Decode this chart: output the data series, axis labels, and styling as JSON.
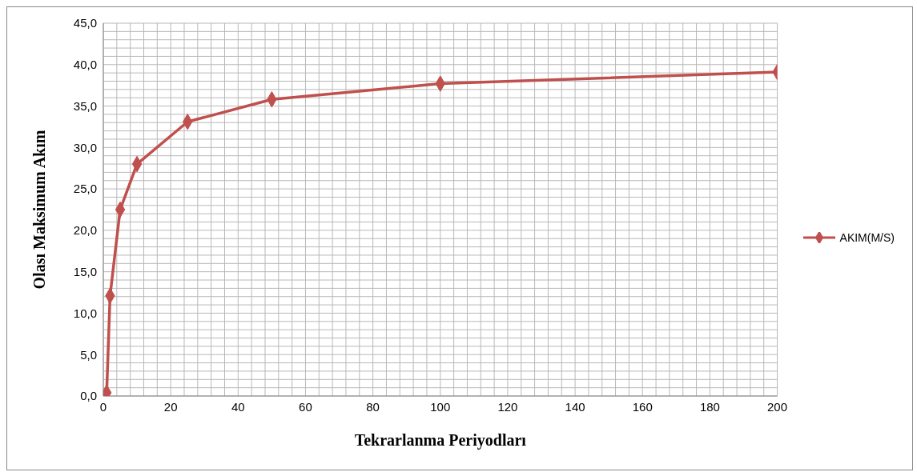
{
  "chart_data": {
    "type": "line",
    "xlabel": "Tekrarlanma Periyodları",
    "ylabel": "Olası Maksimum Akım",
    "x": [
      1,
      2,
      5,
      10,
      25,
      50,
      100,
      200
    ],
    "series": [
      {
        "name": "AKIM(M/S)",
        "color": "#c0504d",
        "values": [
          0.4,
          12.1,
          22.5,
          28.0,
          33.1,
          35.8,
          37.7,
          39.1
        ]
      }
    ],
    "xlim": [
      0,
      200
    ],
    "xticks": [
      0,
      {
        "value": 4,
        "label": null
      },
      {
        "value": 8,
        "label": null
      },
      {
        "value": 12,
        "label": null
      },
      {
        "value": 16,
        "label": null
      },
      20,
      {
        "value": 24,
        "label": null
      },
      {
        "value": 28,
        "label": null
      },
      {
        "value": 32,
        "label": null
      },
      {
        "value": 36,
        "label": null
      },
      40,
      {
        "value": 44,
        "label": null
      },
      {
        "value": 48,
        "label": null
      },
      {
        "value": 52,
        "label": null
      },
      {
        "value": 56,
        "label": null
      },
      60,
      {
        "value": 64,
        "label": null
      },
      {
        "value": 68,
        "label": null
      },
      {
        "value": 72,
        "label": null
      },
      {
        "value": 76,
        "label": null
      },
      80,
      {
        "value": 84,
        "label": null
      },
      {
        "value": 88,
        "label": null
      },
      {
        "value": 92,
        "label": null
      },
      {
        "value": 96,
        "label": null
      },
      100,
      {
        "value": 104,
        "label": null
      },
      {
        "value": 108,
        "label": null
      },
      {
        "value": 112,
        "label": null
      },
      {
        "value": 116,
        "label": null
      },
      120,
      {
        "value": 124,
        "label": null
      },
      {
        "value": 128,
        "label": null
      },
      {
        "value": 132,
        "label": null
      },
      {
        "value": 136,
        "label": null
      },
      140,
      {
        "value": 144,
        "label": null
      },
      {
        "value": 148,
        "label": null
      },
      {
        "value": 152,
        "label": null
      },
      {
        "value": 156,
        "label": null
      },
      160,
      {
        "value": 164,
        "label": null
      },
      {
        "value": 168,
        "label": null
      },
      {
        "value": 172,
        "label": null
      },
      {
        "value": 176,
        "label": null
      },
      180,
      {
        "value": 184,
        "label": null
      },
      {
        "value": 188,
        "label": null
      },
      {
        "value": 192,
        "label": null
      },
      {
        "value": 196,
        "label": null
      },
      200
    ],
    "ylim": [
      0,
      45
    ],
    "yticks": [
      {
        "value": 0,
        "label": "0,0"
      },
      {
        "value": 1,
        "label": null
      },
      {
        "value": 2,
        "label": null
      },
      {
        "value": 3,
        "label": null
      },
      {
        "value": 4,
        "label": null
      },
      {
        "value": 5,
        "label": "5,0"
      },
      {
        "value": 6,
        "label": null
      },
      {
        "value": 7,
        "label": null
      },
      {
        "value": 8,
        "label": null
      },
      {
        "value": 9,
        "label": null
      },
      {
        "value": 10,
        "label": "10,0"
      },
      {
        "value": 11,
        "label": null
      },
      {
        "value": 12,
        "label": null
      },
      {
        "value": 13,
        "label": null
      },
      {
        "value": 14,
        "label": null
      },
      {
        "value": 15,
        "label": "15,0"
      },
      {
        "value": 16,
        "label": null
      },
      {
        "value": 17,
        "label": null
      },
      {
        "value": 18,
        "label": null
      },
      {
        "value": 19,
        "label": null
      },
      {
        "value": 20,
        "label": "20,0"
      },
      {
        "value": 21,
        "label": null
      },
      {
        "value": 22,
        "label": null
      },
      {
        "value": 23,
        "label": null
      },
      {
        "value": 24,
        "label": null
      },
      {
        "value": 25,
        "label": "25,0"
      },
      {
        "value": 26,
        "label": null
      },
      {
        "value": 27,
        "label": null
      },
      {
        "value": 28,
        "label": null
      },
      {
        "value": 29,
        "label": null
      },
      {
        "value": 30,
        "label": "30,0"
      },
      {
        "value": 31,
        "label": null
      },
      {
        "value": 32,
        "label": null
      },
      {
        "value": 33,
        "label": null
      },
      {
        "value": 34,
        "label": null
      },
      {
        "value": 35,
        "label": "35,0"
      },
      {
        "value": 36,
        "label": null
      },
      {
        "value": 37,
        "label": null
      },
      {
        "value": 38,
        "label": null
      },
      {
        "value": 39,
        "label": null
      },
      {
        "value": 40,
        "label": "40,0"
      },
      {
        "value": 41,
        "label": null
      },
      {
        "value": 42,
        "label": null
      },
      {
        "value": 43,
        "label": null
      },
      {
        "value": 44,
        "label": null
      },
      {
        "value": 45,
        "label": "45,0"
      }
    ],
    "grid": true,
    "legend": "right",
    "marker": "diamond",
    "line_style": "solid"
  }
}
